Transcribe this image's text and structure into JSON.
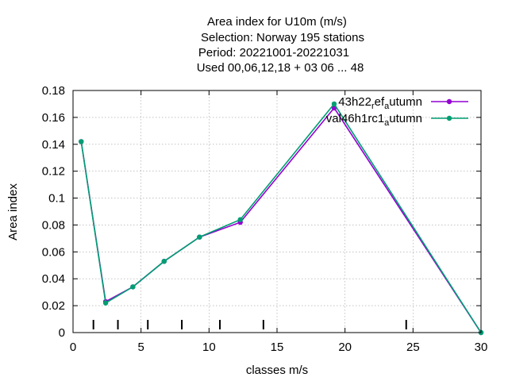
{
  "chart_data": {
    "type": "line",
    "title_lines": [
      "Area index  for U10m (m/s)",
      "Selection: Norway    195 stations",
      "Period: 20221001-20221031",
      "Used  00,06,12,18  + 03 06 ... 48"
    ],
    "xlabel": "classes m/s",
    "ylabel": "Area index",
    "xlim": [
      0,
      30
    ],
    "ylim": [
      0,
      0.18
    ],
    "xticks": [
      0,
      5,
      10,
      15,
      20,
      25,
      30
    ],
    "yticks": [
      0,
      0.02,
      0.04,
      0.06,
      0.08,
      0.1,
      0.12,
      0.14,
      0.16,
      0.18
    ],
    "grid": true,
    "legend_position": "top-right",
    "class_boundaries": [
      1.5,
      3.3,
      5.5,
      8,
      10.8,
      14,
      24.5
    ],
    "series": [
      {
        "name_parts": [
          "43h22",
          "r",
          "ef",
          "a",
          "utumn"
        ],
        "color": "#9400d3",
        "x": [
          0.6,
          2.4,
          4.4,
          6.7,
          9.3,
          12.3,
          19.2,
          30
        ],
        "y": [
          0.142,
          0.023,
          0.034,
          0.053,
          0.071,
          0.082,
          0.167,
          0.0
        ]
      },
      {
        "name_parts": [
          "val46h1rc1",
          "",
          "",
          "a",
          "utumn"
        ],
        "color": "#009e73",
        "x": [
          0.6,
          2.4,
          4.4,
          6.7,
          9.3,
          12.3,
          19.2,
          30
        ],
        "y": [
          0.142,
          0.022,
          0.034,
          0.053,
          0.071,
          0.084,
          0.17,
          0.0
        ]
      }
    ]
  }
}
